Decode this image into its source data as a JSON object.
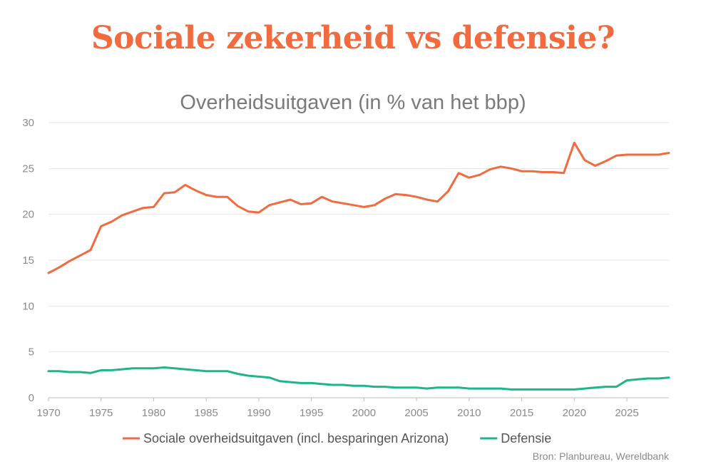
{
  "headline": "Sociale zekerheid vs defensie?",
  "source": "Bron: Planbureau, Wereldbank",
  "colors": {
    "headline": "#f26a3d",
    "social": "#f26a3d",
    "defense": "#1fb58a",
    "grid": "#e6e6e6",
    "axis": "#bdbdbd"
  },
  "chart_data": {
    "type": "line",
    "title": "Overheidsuitgaven (in % van het bbp)",
    "xlabel": "",
    "ylabel": "",
    "xlim": [
      1970,
      2029
    ],
    "ylim": [
      0,
      30
    ],
    "x_ticks": [
      1970,
      1975,
      1980,
      1985,
      1990,
      1995,
      2000,
      2005,
      2010,
      2015,
      2020,
      2025
    ],
    "y_ticks": [
      0,
      5,
      10,
      15,
      20,
      25,
      30
    ],
    "grid": "horizontal",
    "legend_position": "bottom",
    "series": [
      {
        "name": "Sociale overheidsuitgaven (incl. besparingen Arizona)",
        "color": "#f26a3d",
        "x": [
          1970,
          1971,
          1972,
          1973,
          1974,
          1975,
          1976,
          1977,
          1978,
          1979,
          1980,
          1981,
          1982,
          1983,
          1984,
          1985,
          1986,
          1987,
          1988,
          1989,
          1990,
          1991,
          1992,
          1993,
          1994,
          1995,
          1996,
          1997,
          1998,
          1999,
          2000,
          2001,
          2002,
          2003,
          2004,
          2005,
          2006,
          2007,
          2008,
          2009,
          2010,
          2011,
          2012,
          2013,
          2014,
          2015,
          2016,
          2017,
          2018,
          2019,
          2020,
          2021,
          2022,
          2023,
          2024,
          2025,
          2026,
          2027,
          2028,
          2029
        ],
        "values": [
          13.6,
          14.2,
          14.9,
          15.5,
          16.1,
          18.7,
          19.2,
          19.9,
          20.3,
          20.7,
          20.8,
          22.3,
          22.4,
          23.2,
          22.6,
          22.1,
          21.9,
          21.9,
          20.9,
          20.3,
          20.2,
          21.0,
          21.3,
          21.6,
          21.1,
          21.2,
          21.9,
          21.4,
          21.2,
          21.0,
          20.8,
          21.0,
          21.7,
          22.2,
          22.1,
          21.9,
          21.6,
          21.4,
          22.5,
          24.5,
          24.0,
          24.3,
          24.9,
          25.2,
          25.0,
          24.7,
          24.7,
          24.6,
          24.6,
          24.5,
          27.8,
          25.9,
          25.3,
          25.8,
          26.4,
          26.5,
          26.5,
          26.5,
          26.5,
          26.7
        ]
      },
      {
        "name": "Defensie",
        "color": "#1fb58a",
        "x": [
          1970,
          1971,
          1972,
          1973,
          1974,
          1975,
          1976,
          1977,
          1978,
          1979,
          1980,
          1981,
          1982,
          1983,
          1984,
          1985,
          1986,
          1987,
          1988,
          1989,
          1990,
          1991,
          1992,
          1993,
          1994,
          1995,
          1996,
          1997,
          1998,
          1999,
          2000,
          2001,
          2002,
          2003,
          2004,
          2005,
          2006,
          2007,
          2008,
          2009,
          2010,
          2011,
          2012,
          2013,
          2014,
          2015,
          2016,
          2017,
          2018,
          2019,
          2020,
          2021,
          2022,
          2023,
          2024,
          2025,
          2026,
          2027,
          2028,
          2029
        ],
        "values": [
          2.9,
          2.9,
          2.8,
          2.8,
          2.7,
          3.0,
          3.0,
          3.1,
          3.2,
          3.2,
          3.2,
          3.3,
          3.2,
          3.1,
          3.0,
          2.9,
          2.9,
          2.9,
          2.6,
          2.4,
          2.3,
          2.2,
          1.8,
          1.7,
          1.6,
          1.6,
          1.5,
          1.4,
          1.4,
          1.3,
          1.3,
          1.2,
          1.2,
          1.1,
          1.1,
          1.1,
          1.0,
          1.1,
          1.1,
          1.1,
          1.0,
          1.0,
          1.0,
          1.0,
          0.9,
          0.9,
          0.9,
          0.9,
          0.9,
          0.9,
          0.9,
          1.0,
          1.1,
          1.2,
          1.2,
          1.9,
          2.0,
          2.1,
          2.1,
          2.2
        ]
      }
    ]
  }
}
